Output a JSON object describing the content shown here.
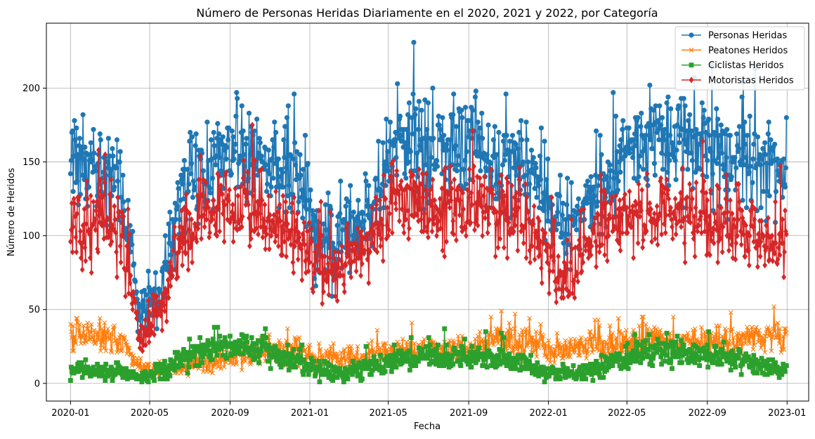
{
  "chart_data": {
    "type": "line",
    "title": "Número de Personas Heridas Diariamente en el 2020, 2021 y 2022, por Categoría",
    "xlabel": "Fecha",
    "ylabel": "Número de Heridos",
    "x_ticks": [
      "2020-01",
      "2020-05",
      "2020-09",
      "2021-01",
      "2021-05",
      "2021-09",
      "2022-01",
      "2022-05",
      "2022-09",
      "2023-01"
    ],
    "y_ticks": [
      0,
      50,
      100,
      150,
      200
    ],
    "ylim": [
      -12,
      244
    ],
    "xlim": [
      "2019-11-25",
      "2023-02-03"
    ],
    "grid": true,
    "legend_position": "top-right",
    "granularity": "daily",
    "date_range": [
      "2020-01-01",
      "2022-12-31"
    ],
    "series": [
      {
        "name": "Personas Heridas",
        "color": "#1f77b4",
        "marker": "circle",
        "monthly_typical": [
          145,
          150,
          140,
          45,
          60,
          130,
          140,
          150,
          160,
          150,
          150,
          130,
          95,
          90,
          110,
          130,
          165,
          160,
          155,
          160,
          160,
          150,
          155,
          140,
          100,
          110,
          130,
          150,
          160,
          165,
          165,
          160,
          155,
          155,
          150,
          140
        ],
        "monthly_spread": [
          25,
          25,
          25,
          12,
          18,
          25,
          25,
          25,
          25,
          25,
          25,
          25,
          22,
          22,
          25,
          25,
          25,
          25,
          25,
          25,
          25,
          25,
          25,
          25,
          22,
          22,
          25,
          25,
          25,
          25,
          25,
          25,
          25,
          25,
          25,
          25
        ]
      },
      {
        "name": "Peatones Heridos",
        "color": "#ff7f0e",
        "marker": "x",
        "monthly_typical": [
          32,
          32,
          30,
          10,
          8,
          10,
          12,
          15,
          18,
          20,
          22,
          20,
          18,
          17,
          18,
          20,
          22,
          22,
          22,
          24,
          26,
          28,
          28,
          25,
          22,
          24,
          25,
          27,
          28,
          28,
          28,
          28,
          30,
          30,
          32,
          30
        ],
        "monthly_spread": [
          8,
          8,
          8,
          4,
          4,
          4,
          5,
          5,
          6,
          6,
          7,
          7,
          6,
          6,
          6,
          6,
          6,
          6,
          6,
          7,
          7,
          8,
          8,
          8,
          7,
          7,
          7,
          7,
          7,
          7,
          7,
          7,
          8,
          9,
          10,
          10
        ]
      },
      {
        "name": "Ciclistas Heridos",
        "color": "#2ca02c",
        "marker": "square",
        "monthly_typical": [
          8,
          8,
          8,
          3,
          8,
          15,
          22,
          24,
          24,
          22,
          18,
          14,
          8,
          6,
          10,
          12,
          16,
          18,
          18,
          18,
          18,
          16,
          14,
          10,
          6,
          6,
          10,
          14,
          18,
          20,
          20,
          18,
          18,
          16,
          14,
          10
        ],
        "monthly_spread": [
          4,
          4,
          4,
          2,
          4,
          6,
          7,
          7,
          7,
          6,
          6,
          5,
          4,
          4,
          5,
          5,
          6,
          6,
          6,
          6,
          6,
          6,
          5,
          5,
          4,
          4,
          5,
          5,
          6,
          6,
          6,
          6,
          6,
          6,
          5,
          5
        ]
      },
      {
        "name": "Motoristas Heridos",
        "color": "#d62728",
        "marker": "diamond",
        "monthly_typical": [
          105,
          110,
          105,
          30,
          50,
          95,
          110,
          115,
          120,
          115,
          110,
          95,
          75,
          75,
          90,
          105,
          125,
          125,
          120,
          120,
          120,
          115,
          110,
          100,
          70,
          80,
          100,
          110,
          115,
          115,
          115,
          110,
          110,
          105,
          100,
          95
        ],
        "monthly_spread": [
          20,
          20,
          20,
          8,
          14,
          20,
          20,
          20,
          20,
          20,
          20,
          18,
          16,
          16,
          18,
          20,
          20,
          20,
          20,
          20,
          20,
          20,
          20,
          18,
          16,
          16,
          18,
          18,
          18,
          18,
          18,
          18,
          18,
          18,
          18,
          18
        ]
      }
    ]
  }
}
